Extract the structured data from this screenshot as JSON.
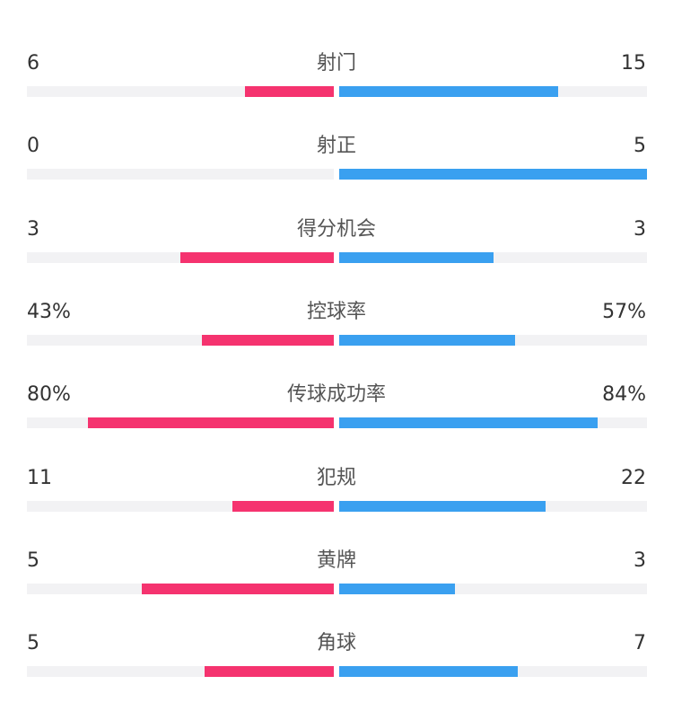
{
  "colors": {
    "home": "#f5336f",
    "away": "#3aa0f0",
    "track": "#f2f2f4"
  },
  "stats": [
    {
      "label": "射门",
      "left": "6",
      "right": "15",
      "left_fraction": 0.29,
      "right_fraction": 0.71
    },
    {
      "label": "射正",
      "left": "0",
      "right": "5",
      "left_fraction": 0.0,
      "right_fraction": 1.0
    },
    {
      "label": "得分机会",
      "left": "3",
      "right": "3",
      "left_fraction": 0.5,
      "right_fraction": 0.5
    },
    {
      "label": "控球率",
      "left": "43%",
      "right": "57%",
      "left_fraction": 0.43,
      "right_fraction": 0.57
    },
    {
      "label": "传球成功率",
      "left": "80%",
      "right": "84%",
      "left_fraction": 0.8,
      "right_fraction": 0.84
    },
    {
      "label": "犯规",
      "left": "11",
      "right": "22",
      "left_fraction": 0.33,
      "right_fraction": 0.67
    },
    {
      "label": "黄牌",
      "left": "5",
      "right": "3",
      "left_fraction": 0.625,
      "right_fraction": 0.375
    },
    {
      "label": "角球",
      "left": "5",
      "right": "7",
      "left_fraction": 0.42,
      "right_fraction": 0.58
    }
  ]
}
